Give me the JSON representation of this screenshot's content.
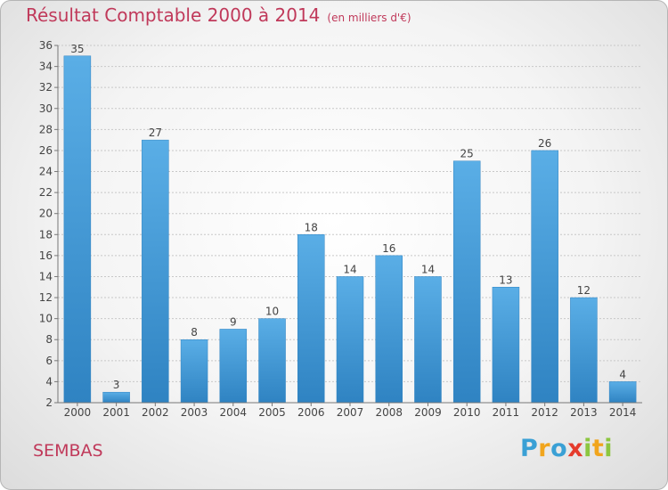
{
  "header": {
    "title": "Résultat Comptable 2000 à 2014",
    "unit": "(en milliers d'€)"
  },
  "location": "SEMBAS",
  "logo": {
    "text": "Proxiti",
    "letters": [
      {
        "ch": "P",
        "color": "#3aa0d5"
      },
      {
        "ch": "r",
        "color": "#f1a51d"
      },
      {
        "ch": "o",
        "color": "#3aa0d5"
      },
      {
        "ch": "x",
        "color": "#e53b2c"
      },
      {
        "ch": "i",
        "color": "#8cc63f"
      },
      {
        "ch": "t",
        "color": "#f1a51d"
      },
      {
        "ch": "i",
        "color": "#8cc63f"
      }
    ]
  },
  "colors": {
    "bar": "#3b96d6",
    "bar_light": "#5aaee6",
    "title": "#c0395a"
  },
  "chart_data": {
    "type": "bar",
    "title": "Résultat Comptable 2000 à 2014",
    "xlabel": "",
    "ylabel": "en milliers d'€",
    "categories": [
      "2000",
      "2001",
      "2002",
      "2003",
      "2004",
      "2005",
      "2006",
      "2007",
      "2008",
      "2009",
      "2010",
      "2011",
      "2012",
      "2013",
      "2014"
    ],
    "values": [
      35,
      3,
      27,
      8,
      9,
      10,
      18,
      14,
      16,
      14,
      25,
      13,
      26,
      12,
      4
    ],
    "ylim": [
      2,
      36
    ],
    "yticks": [
      2,
      4,
      6,
      8,
      10,
      12,
      14,
      16,
      18,
      20,
      22,
      24,
      26,
      28,
      30,
      32,
      34,
      36
    ],
    "grid": true
  }
}
